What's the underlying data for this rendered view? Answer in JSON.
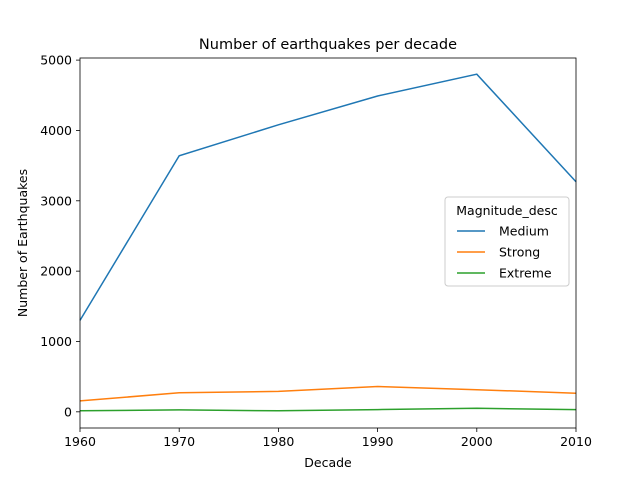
{
  "chart_data": {
    "type": "line",
    "title": "Number of earthquakes per decade",
    "xlabel": "Decade",
    "ylabel": "Number of Earthquakes",
    "x": [
      1960,
      1970,
      1980,
      1990,
      2000,
      2010
    ],
    "xlim": [
      1960,
      2010
    ],
    "ylim": [
      -230,
      5030
    ],
    "xticks": [
      1960,
      1970,
      1980,
      1990,
      2000,
      2010
    ],
    "yticks": [
      0,
      1000,
      2000,
      3000,
      4000,
      5000
    ],
    "grid": false,
    "legend": {
      "title": "Magnitude_desc",
      "placement": "center-right"
    },
    "series": [
      {
        "name": "Medium",
        "color": "#1f77b4",
        "values": [
          1300,
          3640,
          4080,
          4490,
          4800,
          3270
        ]
      },
      {
        "name": "Strong",
        "color": "#ff7f0e",
        "values": [
          155,
          270,
          290,
          360,
          315,
          265
        ]
      },
      {
        "name": "Extreme",
        "color": "#2ca02c",
        "values": [
          15,
          28,
          15,
          32,
          50,
          32
        ]
      }
    ]
  }
}
